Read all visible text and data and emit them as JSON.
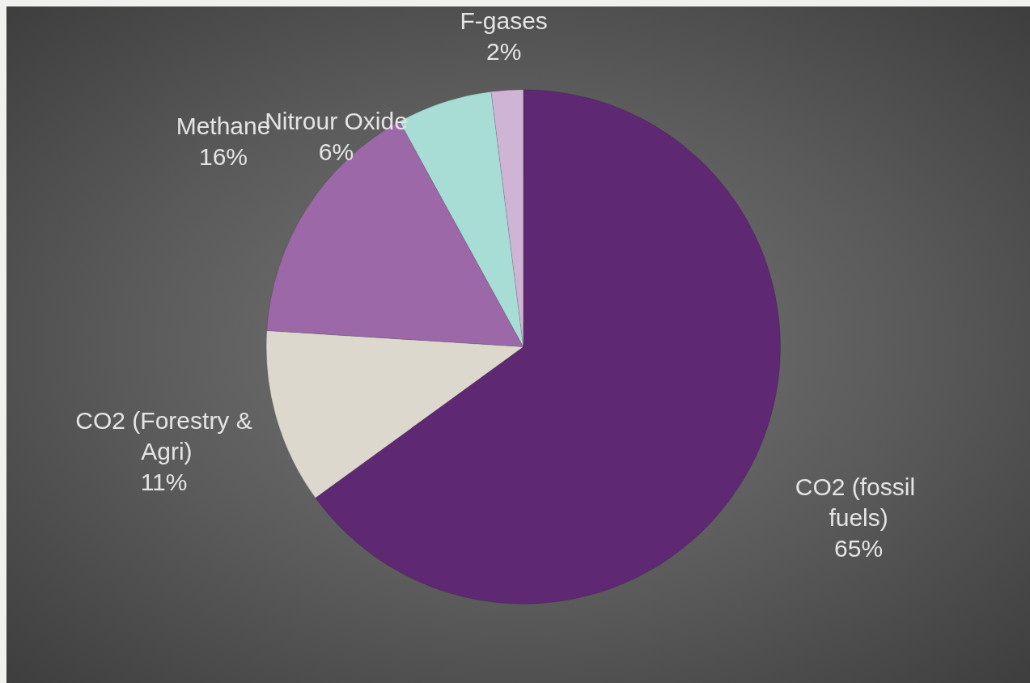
{
  "chart_data": {
    "type": "pie",
    "categories": [
      "CO2 (fossil fuels)",
      "CO2 (Forestry & Agri)",
      "Methane",
      "Nitrour Oxide",
      "F-gases"
    ],
    "values": [
      65,
      11,
      16,
      6,
      2
    ],
    "value_labels": [
      "65%",
      "11%",
      "16%",
      "6%",
      "2%"
    ],
    "colors": [
      "#5f2872",
      "#dcd8ce",
      "#9c68a8",
      "#a8ddd6",
      "#cfb4d6"
    ]
  }
}
